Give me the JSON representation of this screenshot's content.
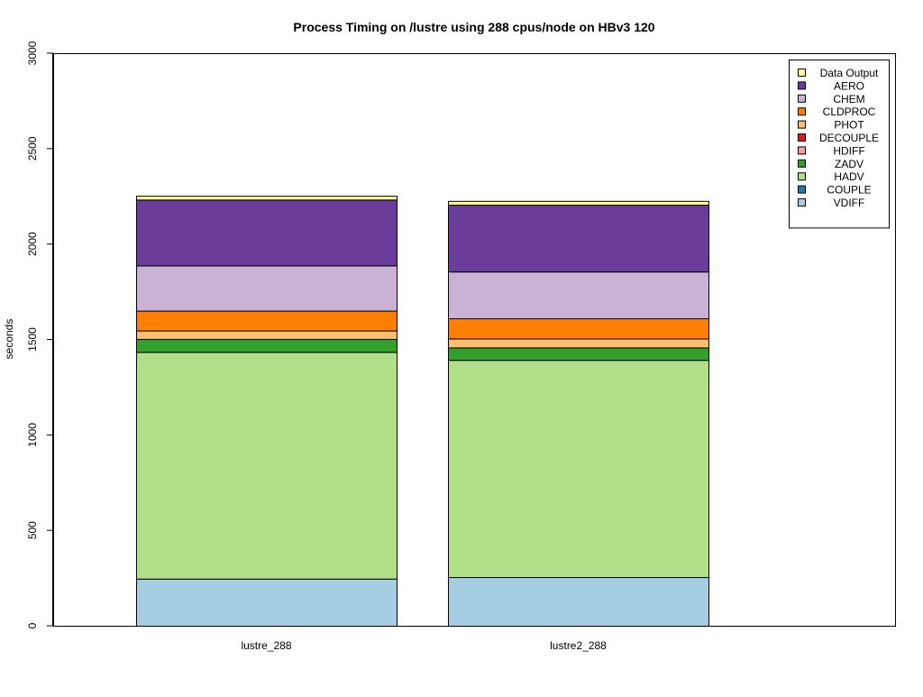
{
  "chart_data": {
    "type": "bar",
    "stacked": true,
    "title": "Process Timing on /lustre using 288 cpus/node on HBv3 120",
    "xlabel": "",
    "ylabel": "seconds",
    "ylim": [
      0,
      3000
    ],
    "yticks": [
      "0",
      "500",
      "1000",
      "1500",
      "2000",
      "2500",
      "3000"
    ],
    "grid": false,
    "legend_position": "top-right",
    "categories": [
      "lustre_288",
      "lustre2_288"
    ],
    "series": [
      {
        "name": "VDIFF",
        "color": "#a6cee3",
        "values": [
          247,
          255
        ]
      },
      {
        "name": "COUPLE",
        "color": "#1f78b4",
        "values": [
          0,
          0
        ]
      },
      {
        "name": "HADV",
        "color": "#b2df8a",
        "values": [
          1188,
          1138
        ]
      },
      {
        "name": "ZADV",
        "color": "#33a02c",
        "values": [
          68,
          65
        ]
      },
      {
        "name": "HDIFF",
        "color": "#fb9a99",
        "values": [
          0,
          0
        ]
      },
      {
        "name": "DECOUPLE",
        "color": "#e31a1c",
        "values": [
          0,
          0
        ]
      },
      {
        "name": "PHOT",
        "color": "#fdbf6f",
        "values": [
          44,
          47
        ]
      },
      {
        "name": "CLDPROC",
        "color": "#ff7f00",
        "values": [
          104,
          106
        ]
      },
      {
        "name": "CHEM",
        "color": "#cab2d6",
        "values": [
          237,
          245
        ]
      },
      {
        "name": "AERO",
        "color": "#6a3d9a",
        "values": [
          345,
          350
        ]
      },
      {
        "name": "Data Output",
        "color": "#ffff99",
        "values": [
          20,
          20
        ]
      }
    ]
  }
}
